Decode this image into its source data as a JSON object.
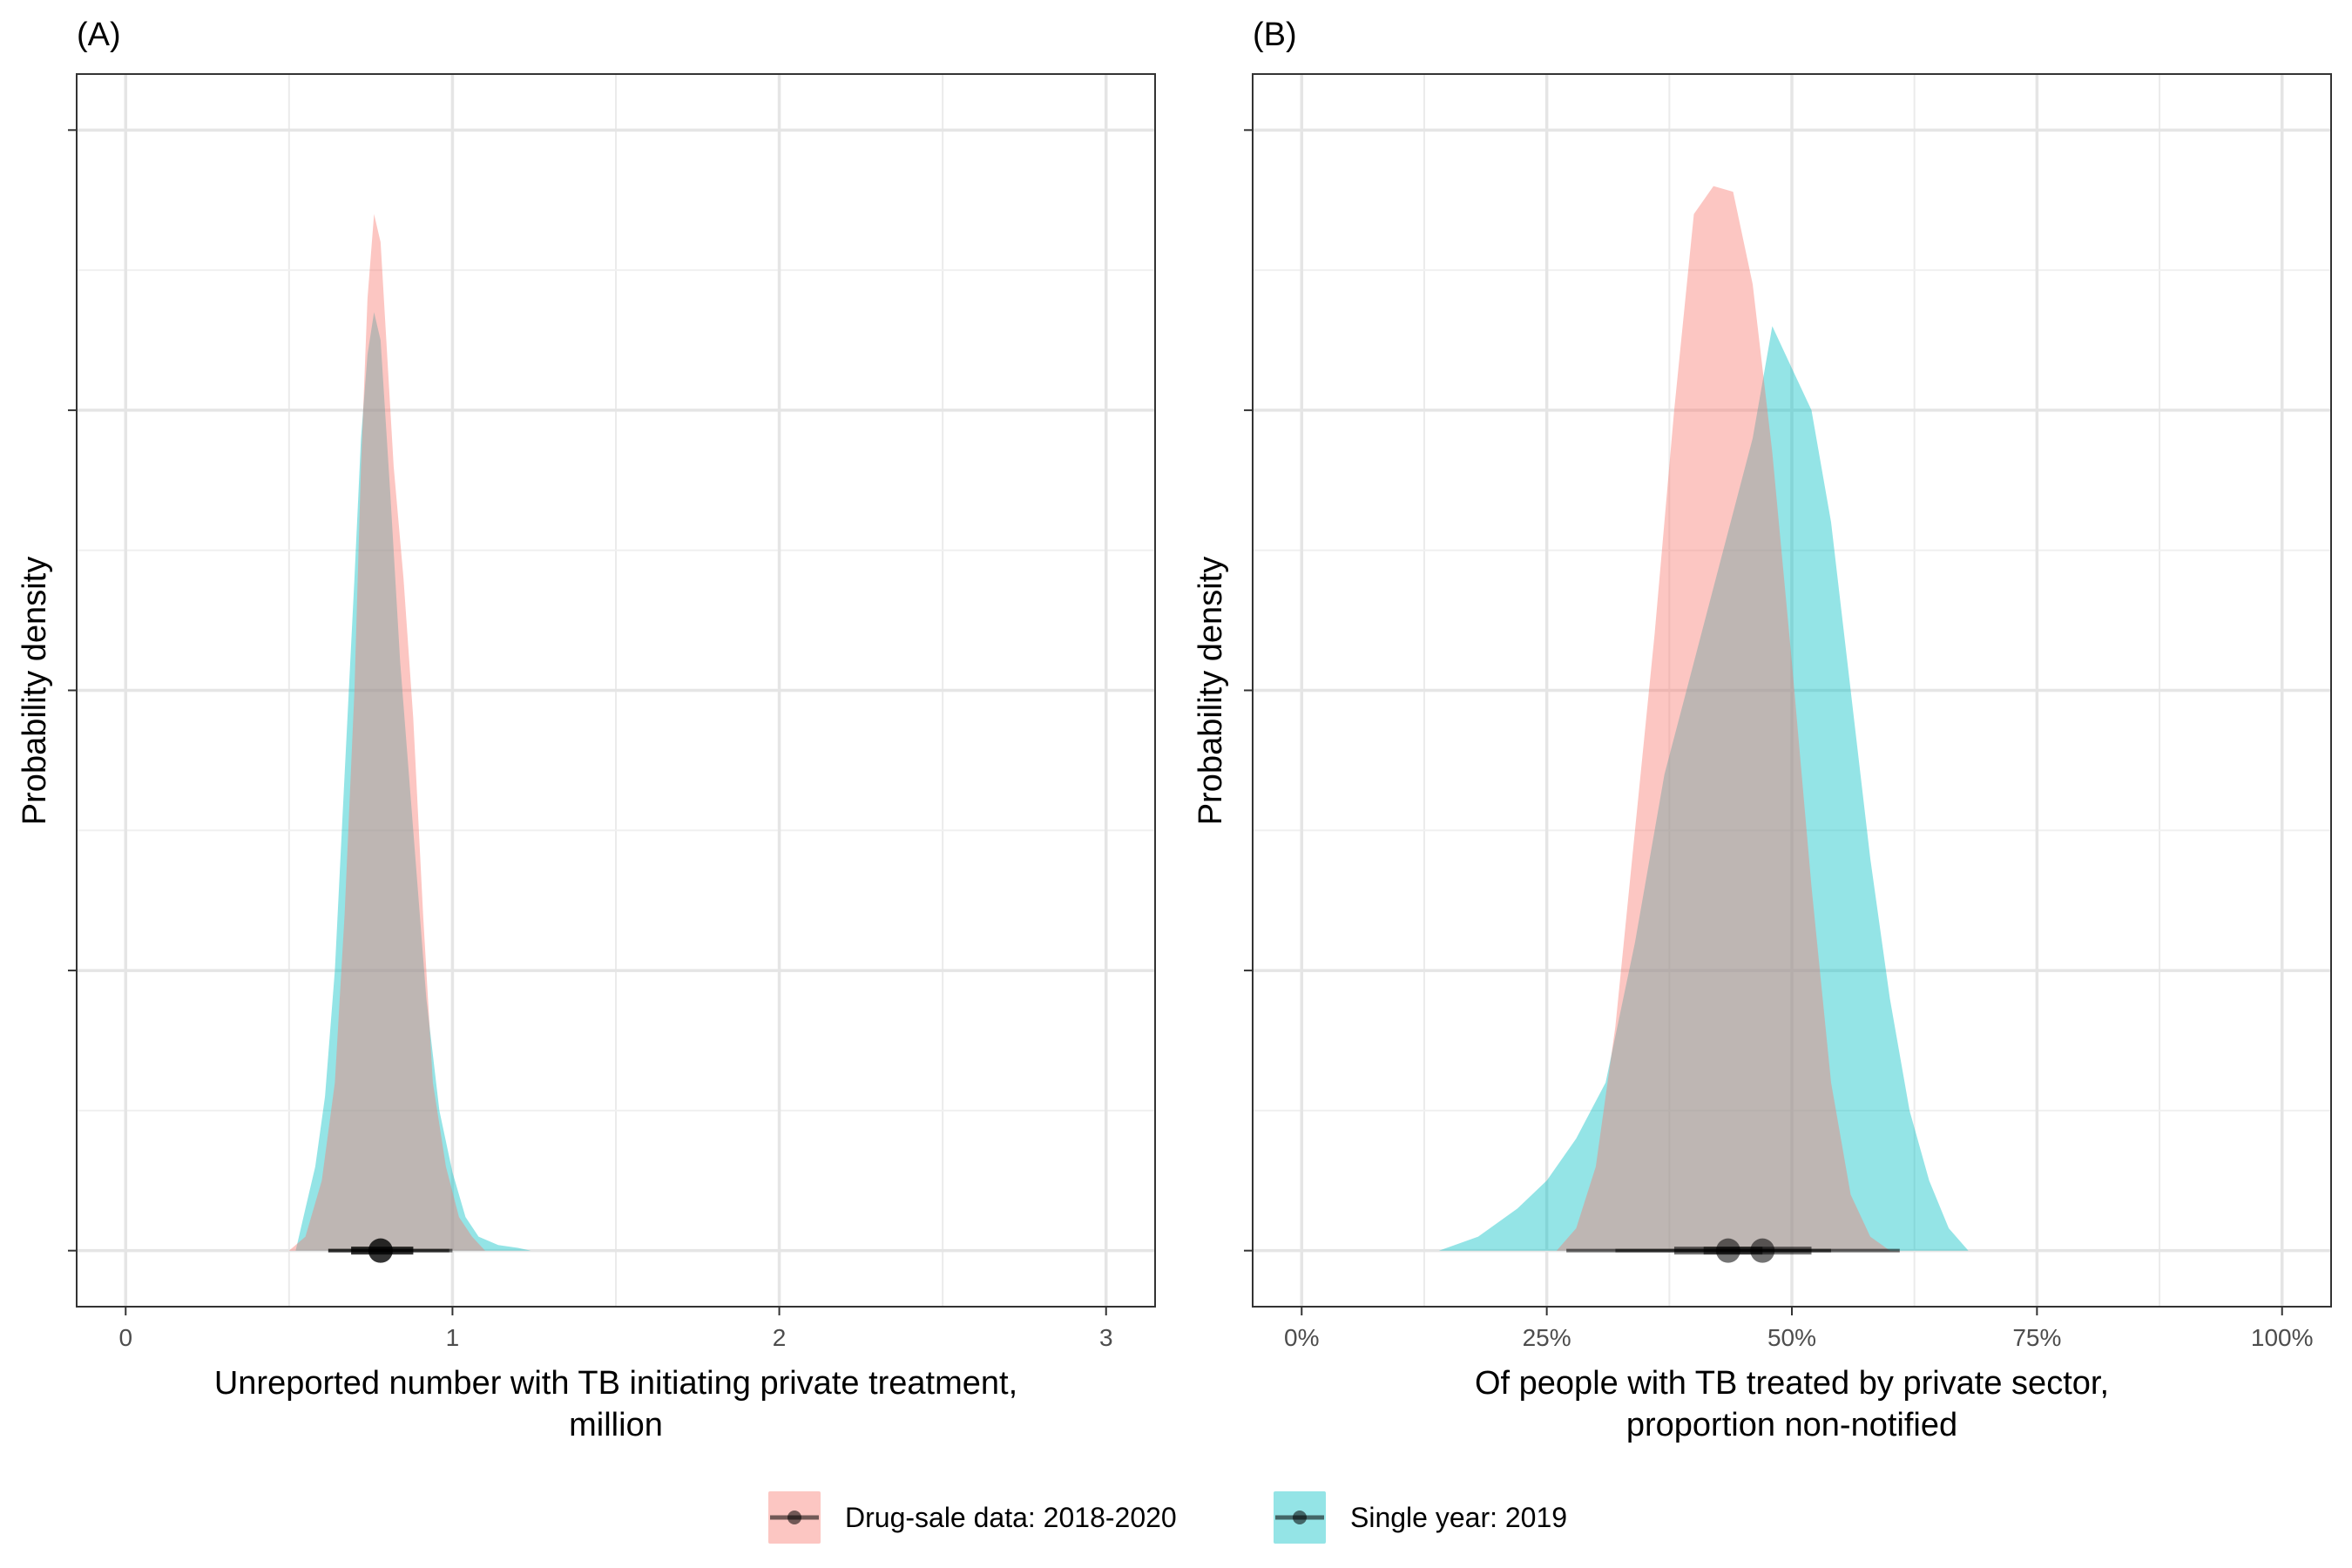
{
  "chart_data": [
    {
      "type": "area",
      "panel_label": "(A)",
      "xlabel": [
        "Unreported number with TB initiating private treatment,",
        "million"
      ],
      "ylabel": "Probability density",
      "x_ticks": [
        "0",
        "1",
        "2",
        "3"
      ],
      "xlim": [
        -0.15,
        3.15
      ],
      "ylim": [
        -0.2,
        4.2
      ],
      "grid": true,
      "series": [
        {
          "name": "Drug-sale data: 2018-2020",
          "color": "#F8766D",
          "density": [
            [
              0.5,
              0.0
            ],
            [
              0.55,
              0.05
            ],
            [
              0.6,
              0.25
            ],
            [
              0.64,
              0.6
            ],
            [
              0.67,
              1.2
            ],
            [
              0.7,
              2.0
            ],
            [
              0.72,
              2.8
            ],
            [
              0.74,
              3.4
            ],
            [
              0.76,
              3.7
            ],
            [
              0.78,
              3.6
            ],
            [
              0.8,
              3.2
            ],
            [
              0.82,
              2.8
            ],
            [
              0.85,
              2.4
            ],
            [
              0.88,
              1.9
            ],
            [
              0.91,
              1.2
            ],
            [
              0.94,
              0.6
            ],
            [
              0.98,
              0.3
            ],
            [
              1.02,
              0.12
            ],
            [
              1.06,
              0.05
            ],
            [
              1.1,
              0.0
            ]
          ],
          "median": 0.78,
          "interval_66": [
            0.69,
            0.88
          ],
          "interval_95": [
            0.62,
            0.99
          ]
        },
        {
          "name": "Single year: 2019",
          "color": "#00BFC4",
          "density": [
            [
              0.52,
              0.0
            ],
            [
              0.55,
              0.15
            ],
            [
              0.58,
              0.3
            ],
            [
              0.61,
              0.55
            ],
            [
              0.64,
              1.0
            ],
            [
              0.67,
              1.7
            ],
            [
              0.7,
              2.4
            ],
            [
              0.72,
              2.9
            ],
            [
              0.74,
              3.2
            ],
            [
              0.76,
              3.35
            ],
            [
              0.78,
              3.25
            ],
            [
              0.81,
              2.7
            ],
            [
              0.84,
              2.1
            ],
            [
              0.88,
              1.5
            ],
            [
              0.92,
              0.9
            ],
            [
              0.96,
              0.5
            ],
            [
              1.0,
              0.28
            ],
            [
              1.04,
              0.12
            ],
            [
              1.08,
              0.05
            ],
            [
              1.14,
              0.02
            ],
            [
              1.2,
              0.01
            ],
            [
              1.24,
              0.0
            ]
          ],
          "median": 0.78,
          "interval_66": [
            0.69,
            0.88
          ],
          "interval_95": [
            0.62,
            1.0
          ]
        }
      ]
    },
    {
      "type": "area",
      "panel_label": "(B)",
      "xlabel": [
        "Of people with TB treated by private sector,",
        "proportion non-notified"
      ],
      "ylabel": "Probability density",
      "x_ticks": [
        "0%",
        "25%",
        "50%",
        "75%",
        "100%"
      ],
      "x_tick_values": [
        0,
        25,
        50,
        75,
        100
      ],
      "xlim": [
        -5,
        105
      ],
      "ylim": [
        -0.2,
        4.2
      ],
      "grid": true,
      "series": [
        {
          "name": "Drug-sale data: 2018-2020",
          "color": "#F8766D",
          "density": [
            [
              26,
              0.0
            ],
            [
              28,
              0.08
            ],
            [
              30,
              0.3
            ],
            [
              32,
              0.8
            ],
            [
              34,
              1.5
            ],
            [
              36,
              2.2
            ],
            [
              38,
              3.0
            ],
            [
              40,
              3.7
            ],
            [
              42,
              3.8
            ],
            [
              44,
              3.78
            ],
            [
              46,
              3.45
            ],
            [
              48,
              2.85
            ],
            [
              50,
              2.1
            ],
            [
              52,
              1.3
            ],
            [
              54,
              0.6
            ],
            [
              56,
              0.2
            ],
            [
              58,
              0.05
            ],
            [
              60,
              0.0
            ]
          ],
          "median": 43.5,
          "interval_66": [
            38,
            47
          ],
          "interval_95": [
            32,
            54
          ]
        },
        {
          "name": "Single year: 2019",
          "color": "#00BFC4",
          "density": [
            [
              14,
              0.0
            ],
            [
              18,
              0.05
            ],
            [
              22,
              0.15
            ],
            [
              25,
              0.25
            ],
            [
              28,
              0.4
            ],
            [
              31,
              0.6
            ],
            [
              34,
              1.1
            ],
            [
              37,
              1.7
            ],
            [
              40,
              2.1
            ],
            [
              43,
              2.5
            ],
            [
              46,
              2.9
            ],
            [
              48,
              3.3
            ],
            [
              50,
              3.15
            ],
            [
              52,
              3.0
            ],
            [
              54,
              2.6
            ],
            [
              56,
              2.0
            ],
            [
              58,
              1.4
            ],
            [
              60,
              0.9
            ],
            [
              62,
              0.5
            ],
            [
              64,
              0.25
            ],
            [
              66,
              0.08
            ],
            [
              68,
              0.0
            ]
          ],
          "median": 47,
          "interval_66": [
            41,
            52
          ],
          "interval_95": [
            27,
            61
          ]
        }
      ]
    }
  ],
  "legend": {
    "position": "bottom",
    "items": [
      {
        "label": "Drug-sale data: 2018-2020",
        "color": "#F8766D"
      },
      {
        "label": "Single year: 2019",
        "color": "#00BFC4"
      }
    ]
  }
}
